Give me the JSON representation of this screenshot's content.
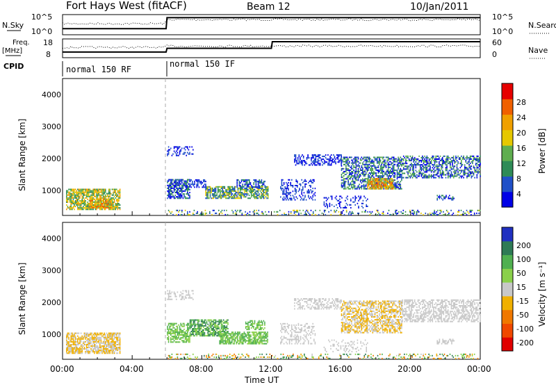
{
  "header": {
    "title": "Fort Hays West (fitACF)",
    "beam": "Beam 12",
    "date": "10/Jan/2011"
  },
  "status_panels": {
    "nsky_label": "N.Sky",
    "nsky_ticks": [
      "10^5",
      "10^0"
    ],
    "nsearch_label": "N.Search",
    "nsearch_ticks": [
      "10^5",
      "10^0"
    ],
    "freq_label": "Freq.",
    "freq_unit": "[MHz]",
    "freq_ticks": [
      "18",
      "8"
    ],
    "nave_label": "Nave",
    "nave_ticks": [
      "60",
      "0"
    ],
    "cpid_label": "CPID",
    "cpid_segments": [
      {
        "start_hour": 0,
        "end_hour": 6,
        "label": "normal 150 RF"
      },
      {
        "start_hour": 6,
        "end_hour": 24,
        "label": "normal 150 IF"
      }
    ],
    "nsky_series": [
      [
        0,
        0.3
      ],
      [
        5.95,
        0.3
      ],
      [
        6.0,
        0.85
      ],
      [
        24,
        0.85
      ]
    ],
    "freq_series": [
      [
        0,
        0.3
      ],
      [
        5.95,
        0.3
      ],
      [
        6.0,
        0.5
      ],
      [
        12.0,
        0.5
      ],
      [
        12.05,
        0.85
      ],
      [
        24,
        0.85
      ]
    ]
  },
  "colorbars": {
    "power": {
      "label": "Power [dB]",
      "ticks": [
        "28",
        "24",
        "20",
        "16",
        "12",
        "8",
        "4"
      ],
      "colors": [
        "#0000e6",
        "#2050c8",
        "#2e8b57",
        "#5fae4f",
        "#e6c800",
        "#f0a000",
        "#f06000",
        "#e60000"
      ]
    },
    "velocity": {
      "label": "Velocity [m s⁻¹]",
      "ticks": [
        "200",
        "100",
        "50",
        "15",
        "-15",
        "-50",
        "-100",
        "-200"
      ],
      "colors": [
        "#2030c0",
        "#2e7a55",
        "#50b050",
        "#8ad04a",
        "#c8c8c8",
        "#f0b000",
        "#f07800",
        "#f04800",
        "#e00000"
      ]
    }
  },
  "chart_data": [
    {
      "type": "heatmap",
      "name": "power",
      "ylabel": "Slant Range [km]",
      "yticks": [
        "4000",
        "3000",
        "2000",
        "1000"
      ],
      "ylim": [
        180,
        4500
      ],
      "xlim": [
        0,
        24
      ],
      "clusters": [
        {
          "t0": 0.2,
          "t1": 3.3,
          "r0": 350,
          "r1": 1000,
          "dens": 0.75,
          "lv": [
            2,
            5
          ]
        },
        {
          "t0": 1.5,
          "t1": 2.8,
          "r0": 400,
          "r1": 700,
          "dens": 0.8,
          "lv": [
            3,
            6
          ]
        },
        {
          "t0": 6.0,
          "t1": 7.3,
          "r0": 700,
          "r1": 1300,
          "dens": 0.7,
          "lv": [
            0,
            2
          ]
        },
        {
          "t0": 6.0,
          "t1": 7.5,
          "r0": 2050,
          "r1": 2350,
          "dens": 0.35,
          "lv": [
            0,
            1
          ]
        },
        {
          "t0": 7.3,
          "t1": 8.2,
          "r0": 1050,
          "r1": 1300,
          "dens": 0.5,
          "lv": [
            0,
            1
          ]
        },
        {
          "t0": 8.2,
          "t1": 11.8,
          "r0": 700,
          "r1": 1100,
          "dens": 0.75,
          "lv": [
            1,
            4
          ]
        },
        {
          "t0": 10.0,
          "t1": 11.6,
          "r0": 1050,
          "r1": 1300,
          "dens": 0.55,
          "lv": [
            0,
            2
          ]
        },
        {
          "t0": 12.5,
          "t1": 14.5,
          "r0": 650,
          "r1": 1300,
          "dens": 0.35,
          "lv": [
            0,
            1
          ]
        },
        {
          "t0": 13.3,
          "t1": 16.0,
          "r0": 1750,
          "r1": 2100,
          "dens": 0.5,
          "lv": [
            0,
            1
          ]
        },
        {
          "t0": 16.0,
          "t1": 19.5,
          "r0": 1000,
          "r1": 2000,
          "dens": 0.6,
          "lv": [
            0,
            3
          ]
        },
        {
          "t0": 17.5,
          "t1": 19.0,
          "r0": 1000,
          "r1": 1350,
          "dens": 0.8,
          "lv": [
            3,
            6
          ]
        },
        {
          "t0": 19.5,
          "t1": 24.0,
          "r0": 1350,
          "r1": 2050,
          "dens": 0.55,
          "lv": [
            0,
            3
          ]
        },
        {
          "t0": 15.0,
          "t1": 17.5,
          "r0": 400,
          "r1": 800,
          "dens": 0.25,
          "lv": [
            0,
            1
          ]
        },
        {
          "t0": 21.5,
          "t1": 22.5,
          "r0": 650,
          "r1": 800,
          "dens": 0.45,
          "lv": [
            0,
            2
          ]
        },
        {
          "t0": 6.0,
          "t1": 24.0,
          "r0": 180,
          "r1": 320,
          "dens": 0.25,
          "lv": [
            0,
            4
          ]
        }
      ]
    },
    {
      "type": "heatmap",
      "name": "velocity",
      "ylabel": "Slant Range [km]",
      "yticks": [
        "4000",
        "3000",
        "2000",
        "1000"
      ],
      "ylim": [
        180,
        4500
      ],
      "xlim": [
        0,
        24
      ],
      "xticks": [
        "00:00",
        "04:00",
        "08:00",
        "12:00",
        "16:00",
        "20:00",
        "00:00"
      ],
      "xlabel": "Time UT",
      "clusters": [
        {
          "t0": 0.2,
          "t1": 3.3,
          "r0": 350,
          "r1": 1000,
          "dens": 0.75,
          "lv": [
            3,
            4
          ]
        },
        {
          "t0": 6.0,
          "t1": 7.5,
          "r0": 2050,
          "r1": 2350,
          "dens": 0.35,
          "lv": [
            4,
            4
          ]
        },
        {
          "t0": 6.0,
          "t1": 7.3,
          "r0": 700,
          "r1": 1300,
          "dens": 0.65,
          "lv": [
            5,
            6
          ]
        },
        {
          "t0": 7.3,
          "t1": 9.5,
          "r0": 900,
          "r1": 1400,
          "dens": 0.75,
          "lv": [
            5,
            7
          ]
        },
        {
          "t0": 9.0,
          "t1": 11.8,
          "r0": 650,
          "r1": 1050,
          "dens": 0.75,
          "lv": [
            5,
            6
          ]
        },
        {
          "t0": 10.5,
          "t1": 11.6,
          "r0": 1100,
          "r1": 1400,
          "dens": 0.6,
          "lv": [
            5,
            6
          ]
        },
        {
          "t0": 12.5,
          "t1": 14.5,
          "r0": 650,
          "r1": 1300,
          "dens": 0.35,
          "lv": [
            4,
            4
          ]
        },
        {
          "t0": 13.3,
          "t1": 16.0,
          "r0": 1750,
          "r1": 2100,
          "dens": 0.5,
          "lv": [
            4,
            4
          ]
        },
        {
          "t0": 16.0,
          "t1": 19.5,
          "r0": 1000,
          "r1": 2000,
          "dens": 0.6,
          "lv": [
            3,
            4
          ]
        },
        {
          "t0": 19.5,
          "t1": 24.0,
          "r0": 1350,
          "r1": 2050,
          "dens": 0.55,
          "lv": [
            4,
            4
          ]
        },
        {
          "t0": 15.0,
          "t1": 17.5,
          "r0": 400,
          "r1": 800,
          "dens": 0.2,
          "lv": [
            4,
            4
          ]
        },
        {
          "t0": 21.5,
          "t1": 22.5,
          "r0": 650,
          "r1": 800,
          "dens": 0.45,
          "lv": [
            4,
            4
          ]
        },
        {
          "t0": 6.0,
          "t1": 24.0,
          "r0": 180,
          "r1": 320,
          "dens": 0.25,
          "lv": [
            2,
            7
          ]
        }
      ]
    }
  ]
}
